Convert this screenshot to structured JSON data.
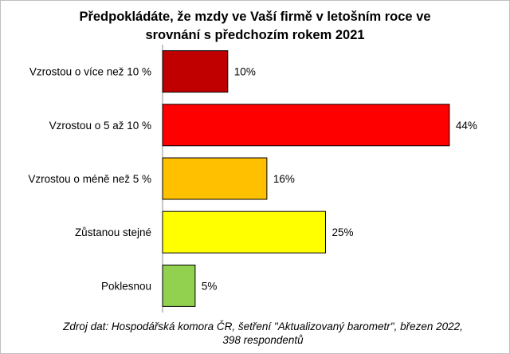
{
  "chart_data": {
    "type": "bar",
    "orientation": "horizontal",
    "title_lines": [
      "Předpokládáte, že mzdy ve Vaší firmě v letošním roce ve",
      "srovnání s předchozím rokem 2021"
    ],
    "categories": [
      "Vzrostou o více než 10 %",
      "Vzrostou o 5 až 10 %",
      "Vzrostou o méně než 5 %",
      "Zůstanou stejné",
      "Poklesnou"
    ],
    "values": [
      10,
      44,
      16,
      25,
      5
    ],
    "value_labels": [
      "10%",
      "44%",
      "16%",
      "25%",
      "5%"
    ],
    "colors": [
      "#c00000",
      "#ff0000",
      "#ffc000",
      "#ffff00",
      "#92d050"
    ],
    "xlim": [
      0,
      50
    ],
    "grid": false,
    "legend": "none",
    "source_lines": [
      "Zdroj dat: Hospodářská komora ČR, šetření \"Aktualizovaný barometr\", březen 2022,",
      "398 respondentů"
    ]
  }
}
